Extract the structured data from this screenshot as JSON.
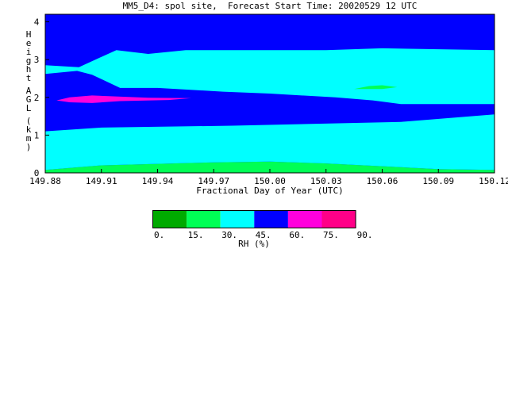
{
  "chart_data": {
    "type": "heatmap",
    "title": "MM5_D4: spol site,  Forecast Start Time: 20020529 12 UTC",
    "xlabel": "Fractional Day of Year (UTC)",
    "ylabel": "Height AGL (km)",
    "xlim": [
      149.88,
      150.12
    ],
    "ylim": [
      0,
      4.2
    ],
    "x_ticks": [
      "149.88",
      "149.91",
      "149.94",
      "149.97",
      "150.00",
      "150.03",
      "150.06",
      "150.09",
      "150.12"
    ],
    "y_ticks": [
      "0",
      "1",
      "2",
      "3",
      "4"
    ],
    "regions": [
      {
        "name": "green-base",
        "value_range": "15-30",
        "color": "#00ff55",
        "points": [
          [
            149.88,
            0.0
          ],
          [
            149.88,
            0.08
          ],
          [
            149.91,
            0.2
          ],
          [
            149.97,
            0.28
          ],
          [
            150.0,
            0.3
          ],
          [
            150.03,
            0.25
          ],
          [
            150.09,
            0.1
          ],
          [
            150.12,
            0.08
          ],
          [
            150.12,
            0.0
          ]
        ]
      },
      {
        "name": "lower-cyan",
        "value_range": "30-45",
        "color": "#00ffff",
        "points": [
          [
            149.88,
            0.08
          ],
          [
            149.91,
            0.2
          ],
          [
            149.97,
            0.28
          ],
          [
            150.0,
            0.3
          ],
          [
            150.03,
            0.25
          ],
          [
            150.09,
            0.1
          ],
          [
            150.12,
            0.08
          ],
          [
            150.12,
            1.55
          ],
          [
            150.07,
            1.35
          ],
          [
            149.98,
            1.25
          ],
          [
            149.91,
            1.2
          ],
          [
            149.88,
            1.1
          ]
        ]
      },
      {
        "name": "upper-cyan",
        "value_range": "30-45",
        "color": "#00ffff",
        "points": [
          [
            149.88,
            2.85
          ],
          [
            149.898,
            2.8
          ],
          [
            149.918,
            3.25
          ],
          [
            149.935,
            3.15
          ],
          [
            149.955,
            3.25
          ],
          [
            150.03,
            3.25
          ],
          [
            150.06,
            3.3
          ],
          [
            150.12,
            3.25
          ],
          [
            150.12,
            1.82
          ],
          [
            150.07,
            1.82
          ],
          [
            150.055,
            1.92
          ],
          [
            150.035,
            2.0
          ],
          [
            150.0,
            2.1
          ],
          [
            149.975,
            2.15
          ],
          [
            149.94,
            2.25
          ],
          [
            149.92,
            2.25
          ],
          [
            149.905,
            2.6
          ],
          [
            149.897,
            2.7
          ],
          [
            149.88,
            2.62
          ]
        ]
      },
      {
        "name": "green-spot",
        "value_range": "15-30",
        "color": "#00ff55",
        "points": [
          [
            150.045,
            2.22
          ],
          [
            150.053,
            2.3
          ],
          [
            150.06,
            2.32
          ],
          [
            150.068,
            2.27
          ],
          [
            150.06,
            2.22
          ]
        ]
      },
      {
        "name": "magenta-band",
        "value_range": "60-75",
        "color": "#ff00dd",
        "points": [
          [
            149.886,
            1.92
          ],
          [
            149.893,
            2.0
          ],
          [
            149.905,
            2.05
          ],
          [
            149.935,
            1.99
          ],
          [
            149.958,
            1.98
          ],
          [
            149.946,
            1.93
          ],
          [
            149.92,
            1.9
          ],
          [
            149.905,
            1.85
          ],
          [
            149.893,
            1.87
          ]
        ]
      }
    ],
    "colorbar": {
      "title": "RH (%)",
      "tick_labels": [
        "0.",
        "15.",
        "30.",
        "45.",
        "60.",
        "75.",
        "90."
      ],
      "colors": [
        "#00aa00",
        "#00ff55",
        "#00ffff",
        "#0000ff",
        "#ff00dd",
        "#ff0088"
      ]
    },
    "background_color": "#0000ff"
  }
}
